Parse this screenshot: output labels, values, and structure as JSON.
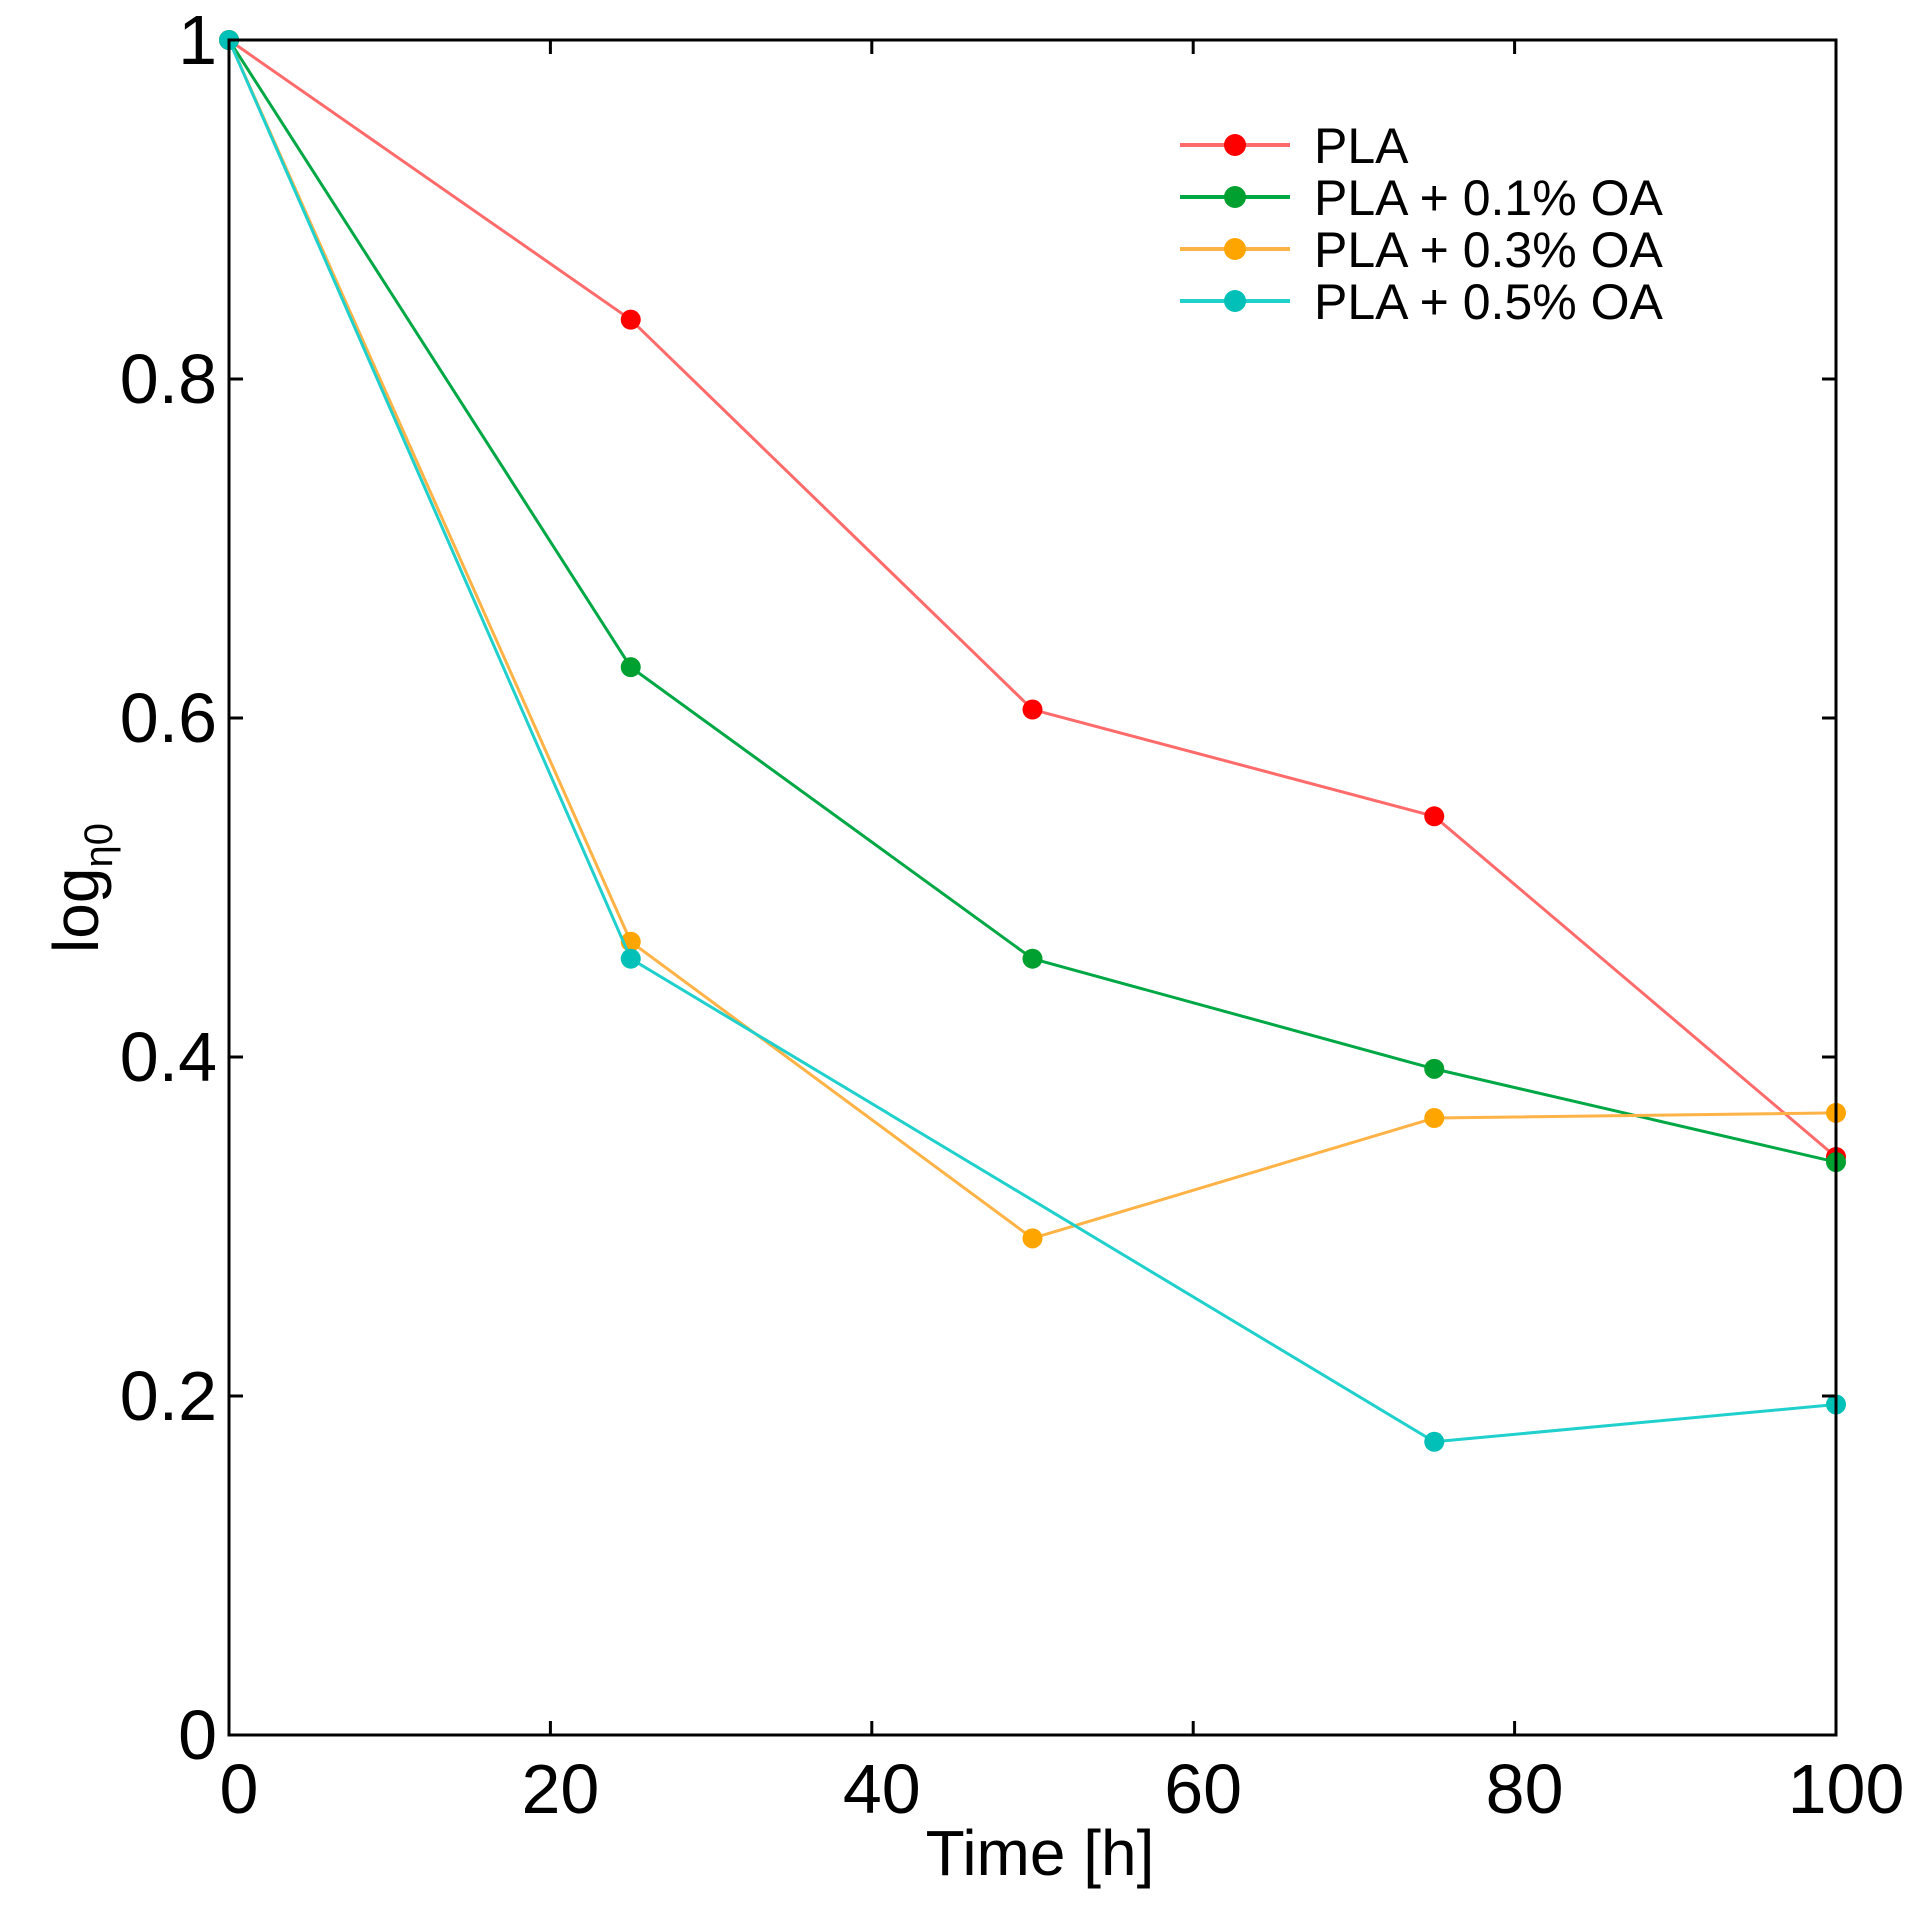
{
  "chart_data": {
    "type": "line",
    "title": "",
    "xlabel": "Time [h]",
    "ylabel_main": "log",
    "ylabel_sub": "η0",
    "xlim": [
      0,
      100
    ],
    "ylim": [
      0,
      1
    ],
    "xticks": [
      0,
      20,
      40,
      60,
      80,
      100
    ],
    "xtick_labels": [
      "0",
      "20",
      "40",
      "60",
      "80",
      "100"
    ],
    "yticks": [
      0,
      0.2,
      0.4,
      0.6,
      0.8,
      1
    ],
    "ytick_labels": [
      "0",
      "0.2",
      "0.4",
      "0.6",
      "0.8",
      "1"
    ],
    "grid": false,
    "legend_position": "top-right",
    "x": [
      0,
      25,
      50,
      75,
      100
    ],
    "series": [
      {
        "name": "PLA",
        "color": "#ff0000",
        "line_color": "#ff6b6b",
        "values": [
          1.0,
          0.835,
          0.605,
          0.542,
          0.341
        ]
      },
      {
        "name": "PLA + 0.1% OA",
        "color": "#00a030",
        "line_color": "#00a845",
        "values": [
          1.0,
          0.63,
          0.458,
          0.393,
          0.338
        ]
      },
      {
        "name": "PLA + 0.3% OA",
        "color": "#ffa500",
        "line_color": "#ffb347",
        "values": [
          1.0,
          0.468,
          0.293,
          0.364,
          0.367
        ]
      },
      {
        "name": "PLA + 0.5% OA",
        "color": "#00c0b8",
        "line_color": "#20d0cc",
        "values": [
          1.0,
          0.458,
          null,
          0.173,
          0.195
        ]
      }
    ]
  }
}
